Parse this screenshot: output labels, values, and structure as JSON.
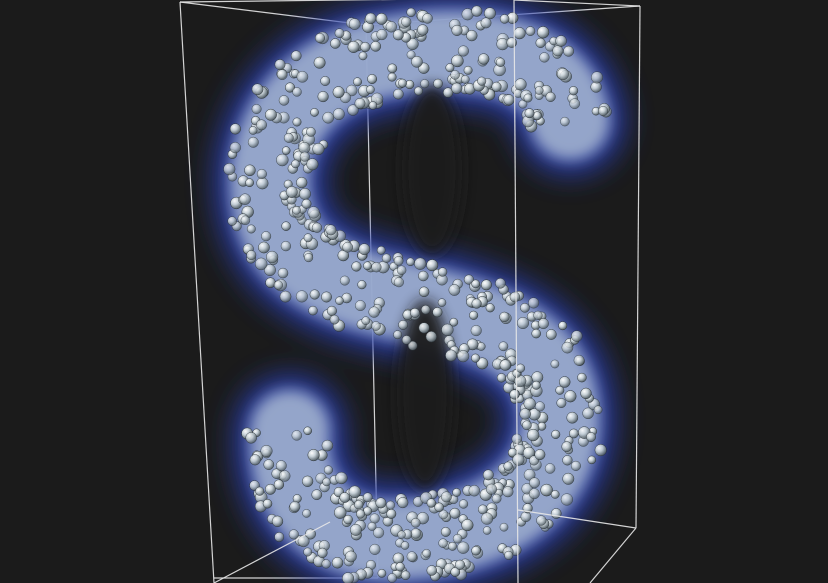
{
  "scene": {
    "background_color": "#1b1b1b",
    "bounding_box_color": "#e8e8e8",
    "glow_color": "#2a3fb0",
    "inner_glow_color": "#b9c9d8",
    "particle_color": "#c8d2d8",
    "particle_highlight_color": "#ffffff",
    "particle_shadow_color": "#4e5a62",
    "particle_count": 700
  }
}
